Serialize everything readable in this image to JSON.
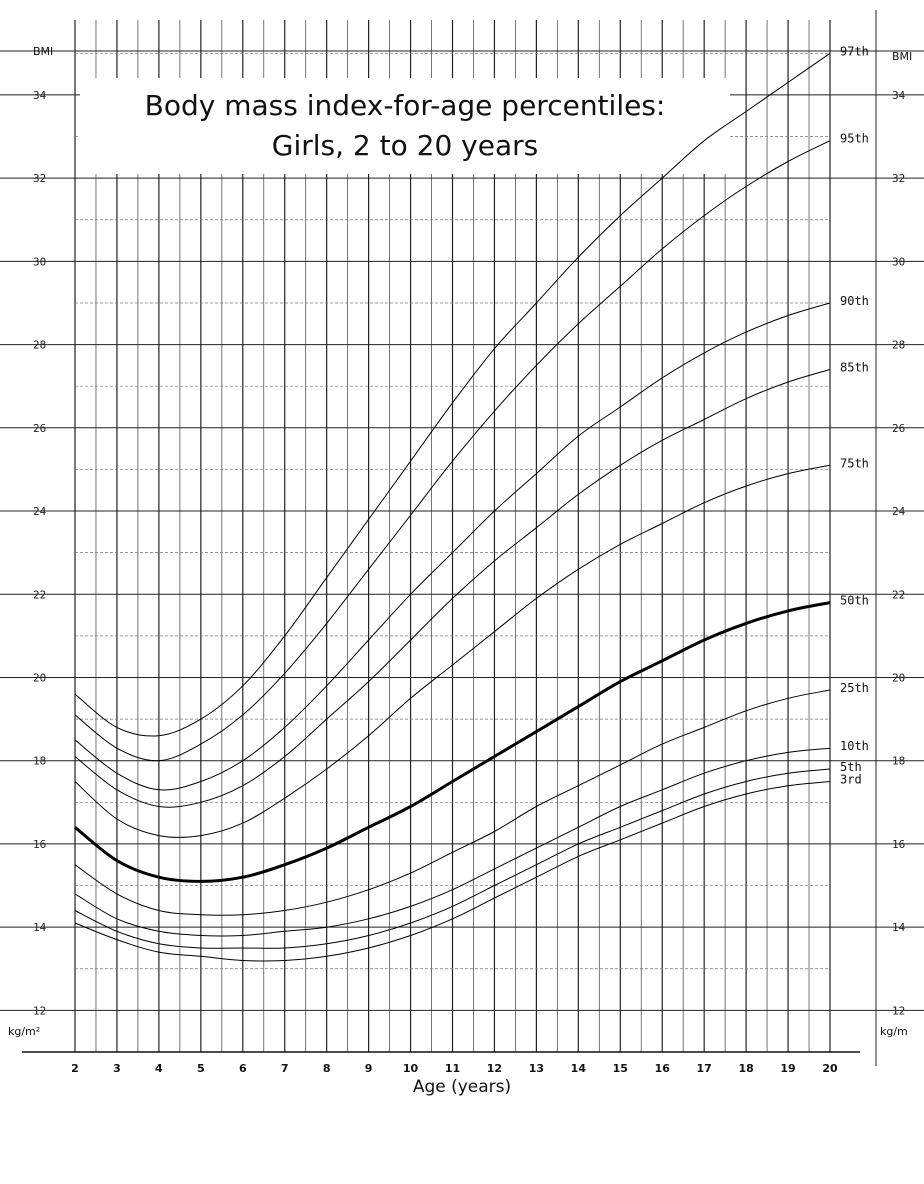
{
  "chart_data": {
    "type": "line",
    "title_line1": "Body mass index-for-age percentiles:",
    "title_line2": "Girls, 2 to 20 years",
    "xlabel": "Age (years)",
    "ylabel_top": "BMI",
    "ylabel_unit": "kg/m²",
    "ylabel_unit_right": "kg/m",
    "xlim": [
      2,
      20
    ],
    "ylim": [
      11,
      35.8
    ],
    "x_ticks": [
      2,
      3,
      4,
      5,
      6,
      7,
      8,
      9,
      10,
      11,
      12,
      13,
      14,
      15,
      16,
      17,
      18,
      19,
      20
    ],
    "x_tick_labels": [
      "2",
      "3",
      "4",
      "5",
      "6",
      "7",
      "8",
      "9",
      "10",
      "11",
      "12",
      "13",
      "14",
      "15",
      "16",
      "17",
      "18",
      "19",
      "20"
    ],
    "y_ticks": [
      12,
      14,
      16,
      18,
      20,
      22,
      24,
      26,
      28,
      30,
      32,
      34
    ],
    "y_tick_labels": [
      "12",
      "14",
      "16",
      "18",
      "20",
      "22",
      "24",
      "26",
      "28",
      "30",
      "32",
      "34"
    ],
    "grid": true,
    "x": [
      2,
      3,
      4,
      5,
      6,
      7,
      8,
      9,
      10,
      11,
      12,
      13,
      14,
      15,
      16,
      17,
      18,
      19,
      20
    ],
    "series": [
      {
        "name": "97th",
        "emphasis": false,
        "values": [
          19.6,
          18.8,
          18.6,
          19.0,
          19.8,
          21.0,
          22.4,
          23.8,
          25.2,
          26.6,
          27.9,
          29.0,
          30.1,
          31.1,
          32.0,
          32.9,
          33.6,
          34.3,
          35.0
        ]
      },
      {
        "name": "95th",
        "emphasis": false,
        "values": [
          19.1,
          18.3,
          18.0,
          18.4,
          19.1,
          20.1,
          21.3,
          22.6,
          23.9,
          25.2,
          26.4,
          27.5,
          28.5,
          29.4,
          30.3,
          31.1,
          31.8,
          32.4,
          32.9
        ]
      },
      {
        "name": "90th",
        "emphasis": false,
        "values": [
          18.5,
          17.7,
          17.3,
          17.5,
          18.0,
          18.8,
          19.8,
          20.9,
          22.0,
          23.0,
          24.0,
          24.9,
          25.8,
          26.5,
          27.2,
          27.8,
          28.3,
          28.7,
          29.0
        ]
      },
      {
        "name": "85th",
        "emphasis": false,
        "values": [
          18.1,
          17.3,
          16.9,
          17.0,
          17.4,
          18.1,
          19.0,
          19.9,
          20.9,
          21.9,
          22.8,
          23.6,
          24.4,
          25.1,
          25.7,
          26.2,
          26.7,
          27.1,
          27.4
        ]
      },
      {
        "name": "75th",
        "emphasis": false,
        "values": [
          17.5,
          16.6,
          16.2,
          16.2,
          16.5,
          17.1,
          17.8,
          18.6,
          19.5,
          20.3,
          21.1,
          21.9,
          22.6,
          23.2,
          23.7,
          24.2,
          24.6,
          24.9,
          25.1
        ]
      },
      {
        "name": "50th",
        "emphasis": true,
        "values": [
          16.4,
          15.6,
          15.2,
          15.1,
          15.2,
          15.5,
          15.9,
          16.4,
          16.9,
          17.5,
          18.1,
          18.7,
          19.3,
          19.9,
          20.4,
          20.9,
          21.3,
          21.6,
          21.8
        ]
      },
      {
        "name": "25th",
        "emphasis": false,
        "values": [
          15.5,
          14.8,
          14.4,
          14.3,
          14.3,
          14.4,
          14.6,
          14.9,
          15.3,
          15.8,
          16.3,
          16.9,
          17.4,
          17.9,
          18.4,
          18.8,
          19.2,
          19.5,
          19.7
        ]
      },
      {
        "name": "10th",
        "emphasis": false,
        "values": [
          14.8,
          14.2,
          13.9,
          13.8,
          13.8,
          13.9,
          14.0,
          14.2,
          14.5,
          14.9,
          15.4,
          15.9,
          16.4,
          16.9,
          17.3,
          17.7,
          18.0,
          18.2,
          18.3
        ]
      },
      {
        "name": "5th",
        "emphasis": false,
        "values": [
          14.4,
          13.9,
          13.6,
          13.5,
          13.5,
          13.5,
          13.6,
          13.8,
          14.1,
          14.5,
          15.0,
          15.5,
          16.0,
          16.4,
          16.8,
          17.2,
          17.5,
          17.7,
          17.8
        ]
      },
      {
        "name": "3rd",
        "emphasis": false,
        "values": [
          14.1,
          13.7,
          13.4,
          13.3,
          13.2,
          13.2,
          13.3,
          13.5,
          13.8,
          14.2,
          14.7,
          15.2,
          15.7,
          16.1,
          16.5,
          16.9,
          17.2,
          17.4,
          17.5
        ]
      }
    ]
  }
}
